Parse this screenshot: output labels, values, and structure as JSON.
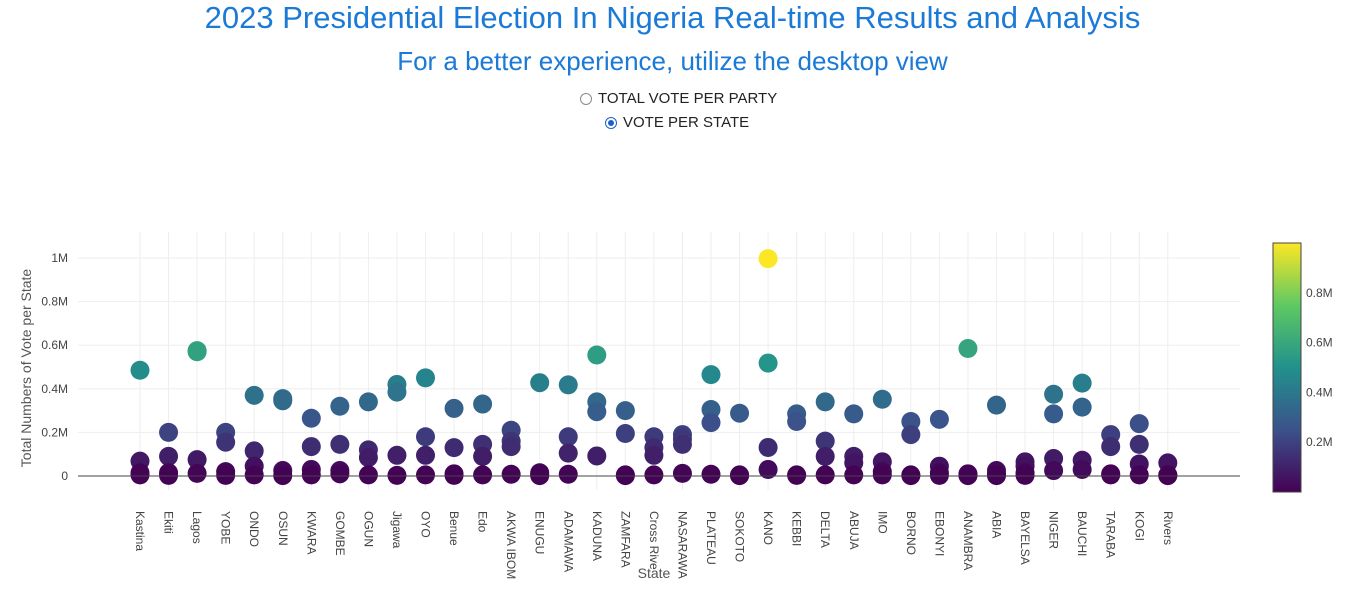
{
  "page": {
    "title": "2023 Presidential Election In Nigeria Real-time Results and Analysis",
    "subtitle": "For a better experience, utilize the desktop view"
  },
  "view_options": [
    {
      "label": "TOTAL VOTE PER PARTY",
      "selected": false
    },
    {
      "label": "VOTE PER STATE",
      "selected": true
    }
  ],
  "colors": {
    "title": "#1a7ad6",
    "radio_selected": "#1a62c7",
    "grid": "#eeeeee",
    "zero_line": "#444444",
    "colorscale": [
      "#440154",
      "#3b528b",
      "#21918c",
      "#5ec962",
      "#fde725"
    ]
  },
  "chart_data": {
    "type": "scatter",
    "title": "",
    "xlabel": "State",
    "ylabel": "Total Numbers of Vote per State",
    "ylim": [
      -60000,
      1100000
    ],
    "y_ticks": [
      0,
      200000,
      400000,
      600000,
      800000,
      1000000
    ],
    "y_tick_labels": [
      "0",
      "0.2M",
      "0.4M",
      "0.6M",
      "0.8M",
      "1M"
    ],
    "grid": true,
    "colorbar": {
      "range": [
        0,
        1000000
      ],
      "ticks": [
        200000,
        400000,
        600000,
        800000
      ],
      "tick_labels": [
        "0.2M",
        "0.4M",
        "0.6M",
        "0.8M"
      ],
      "placement": "right"
    },
    "categories": [
      "Kastina",
      "Ekiti",
      "Lagos",
      "YOBE",
      "ONDO",
      "OSUN",
      "KWARA",
      "GOMBE",
      "OGUN",
      "Jigawa",
      "OYO",
      "Benue",
      "Edo",
      "AKWA IBOM",
      "ENUGU",
      "ADAMAWA",
      "KADUNA",
      "ZAMFARA",
      "Cross River",
      "NASARAWA",
      "PLATEAU",
      "SOKOTO",
      "KANO",
      "KEBBI",
      "DELTA",
      "ABUJA",
      "IMO",
      "BORNO",
      "EBONYI",
      "ANAMBRA",
      "ABIA",
      "BAYELSA",
      "NIGER",
      "BAUCHI",
      "TARABA",
      "KOGI",
      "Rivers"
    ],
    "category_labels": [
      "Kastina",
      "Ekiti",
      "Lagos",
      "YOBE",
      "ONDO",
      "OSUN",
      "KWARA",
      "GOMBE",
      "OGUN",
      "Jigawa",
      "OYO",
      "Benue",
      "Edo",
      "AKWA IBOM",
      "ENUGU",
      "ADAMAWA",
      "KADUNA",
      "ZAMFARA",
      "Cross Rive",
      "NASARAWA",
      "PLATEAU",
      "SOKOTO",
      "KANO",
      "KEBBI",
      "DELTA",
      "ABUJA",
      "IMO",
      "BORNO",
      "EBONYI",
      "ANAMBRA",
      "ABIA",
      "BAYELSA",
      "NIGER",
      "BAUCHI",
      "TARABA",
      "KOGI",
      "Rivers"
    ],
    "points": [
      {
        "state": "Kastina",
        "votes": [
          485000,
          68000,
          15000,
          5000
        ]
      },
      {
        "state": "Ekiti",
        "votes": [
          200000,
          90000,
          15000,
          3000
        ]
      },
      {
        "state": "Lagos",
        "votes": [
          575000,
          570000,
          75000,
          12000
        ]
      },
      {
        "state": "YOBE",
        "votes": [
          200000,
          155000,
          20000,
          3000
        ]
      },
      {
        "state": "ONDO",
        "votes": [
          370000,
          115000,
          45000,
          5000
        ]
      },
      {
        "state": "OSUN",
        "votes": [
          355000,
          345000,
          25000,
          2000
        ]
      },
      {
        "state": "KWARA",
        "votes": [
          265000,
          135000,
          30000,
          5000
        ]
      },
      {
        "state": "GOMBE",
        "votes": [
          320000,
          145000,
          25000,
          10000
        ]
      },
      {
        "state": "OGUN",
        "votes": [
          340000,
          120000,
          85000,
          5000
        ]
      },
      {
        "state": "Jigawa",
        "votes": [
          420000,
          385000,
          95000,
          3000
        ]
      },
      {
        "state": "OYO",
        "votes": [
          450000,
          180000,
          95000,
          5000
        ]
      },
      {
        "state": "Benue",
        "votes": [
          310000,
          130000,
          10000,
          3000
        ]
      },
      {
        "state": "Edo",
        "votes": [
          330000,
          145000,
          90000,
          5000
        ]
      },
      {
        "state": "AKWA IBOM",
        "votes": [
          210000,
          160000,
          135000,
          8000
        ]
      },
      {
        "state": "ENUGU",
        "votes": [
          428000,
          15000,
          5000,
          2000
        ]
      },
      {
        "state": "ADAMAWA",
        "votes": [
          418000,
          180000,
          105000,
          8000
        ]
      },
      {
        "state": "KADUNA",
        "votes": [
          555000,
          340000,
          295000,
          92000
        ]
      },
      {
        "state": "ZAMFARA",
        "votes": [
          300000,
          195000,
          5000,
          2000
        ]
      },
      {
        "state": "Cross River",
        "votes": [
          180000,
          130000,
          95000,
          5000
        ]
      },
      {
        "state": "NASARAWA",
        "votes": [
          190000,
          170000,
          145000,
          12000
        ]
      },
      {
        "state": "PLATEAU",
        "votes": [
          465000,
          305000,
          245000,
          8000
        ]
      },
      {
        "state": "SOKOTO",
        "votes": [
          288000,
          5000,
          3000,
          2000
        ]
      },
      {
        "state": "KANO",
        "votes": [
          997000,
          518000,
          131000,
          30000
        ]
      },
      {
        "state": "KEBBI",
        "votes": [
          285000,
          250000,
          5000,
          3000
        ]
      },
      {
        "state": "DELTA",
        "votes": [
          340000,
          160000,
          90000,
          5000
        ]
      },
      {
        "state": "ABUJA",
        "votes": [
          285000,
          90000,
          60000,
          5000
        ]
      },
      {
        "state": "IMO",
        "votes": [
          352000,
          65000,
          20000,
          5000
        ]
      },
      {
        "state": "BORNO",
        "votes": [
          250000,
          190000,
          5000,
          2000
        ]
      },
      {
        "state": "EBONYI",
        "votes": [
          260000,
          45000,
          15000,
          3000
        ]
      },
      {
        "state": "ANAMBRA",
        "votes": [
          585000,
          10000,
          5000,
          2000
        ]
      },
      {
        "state": "ABIA",
        "votes": [
          325000,
          25000,
          8000,
          2000
        ]
      },
      {
        "state": "BAYELSA",
        "votes": [
          65000,
          45000,
          15000,
          3000
        ]
      },
      {
        "state": "NIGER",
        "votes": [
          375000,
          285000,
          80000,
          25000
        ]
      },
      {
        "state": "BAUCHI",
        "votes": [
          426000,
          316000,
          72000,
          30000
        ]
      },
      {
        "state": "TARABA",
        "votes": [
          190000,
          135000,
          10000,
          5000
        ]
      },
      {
        "state": "KOGI",
        "votes": [
          240000,
          145000,
          55000,
          5000
        ]
      },
      {
        "state": "Rivers",
        "votes": [
          60000,
          5000,
          3000,
          2000
        ]
      }
    ]
  }
}
